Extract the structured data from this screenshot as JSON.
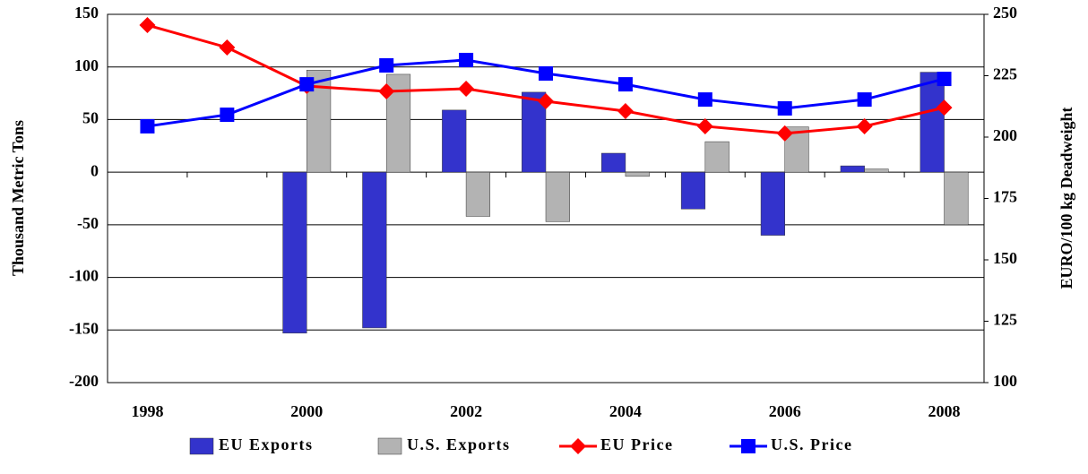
{
  "chart_data": {
    "type": "bar-line",
    "ylabel": "Thousand Metric Tons",
    "y2label": "EURO/100 kg Deadweight",
    "categories": [
      "1998",
      null,
      "2000",
      null,
      "2002",
      null,
      "2004",
      null,
      "2006",
      null,
      "2008"
    ],
    "ylim": [
      -200,
      150
    ],
    "yticks": [
      -200,
      -150,
      -100,
      -50,
      0,
      50,
      100,
      150
    ],
    "y2lim": [
      100,
      250
    ],
    "y2ticks": [
      100,
      125,
      150,
      175,
      200,
      225,
      250
    ],
    "grid": true,
    "legend": "bottom",
    "series": [
      {
        "name": "EU Exports",
        "type": "bar",
        "color": "#3333cc",
        "values": [
          null,
          null,
          -153,
          -148,
          59,
          76,
          18,
          -35,
          -60,
          6,
          95
        ]
      },
      {
        "name": "U.S. Exports",
        "type": "bar",
        "color": "#b3b3b3",
        "values": [
          null,
          null,
          97,
          93,
          -42,
          -47,
          -4,
          29,
          43,
          3,
          -50
        ]
      },
      {
        "name": "EU Price",
        "type": "line",
        "axis": "y2",
        "marker": "diamond",
        "color": "#ff0000",
        "values": [
          245.6,
          236.5,
          220.8,
          218.6,
          219.7,
          214.6,
          210.6,
          204.4,
          201.5,
          204.4,
          212
        ]
      },
      {
        "name": "U.S. Price",
        "type": "line",
        "axis": "y2",
        "marker": "square",
        "color": "#0000ff",
        "values": [
          204.4,
          209.1,
          221.5,
          229.2,
          231.4,
          225.9,
          221.5,
          215.3,
          211.7,
          215.3,
          223.7
        ]
      }
    ]
  }
}
